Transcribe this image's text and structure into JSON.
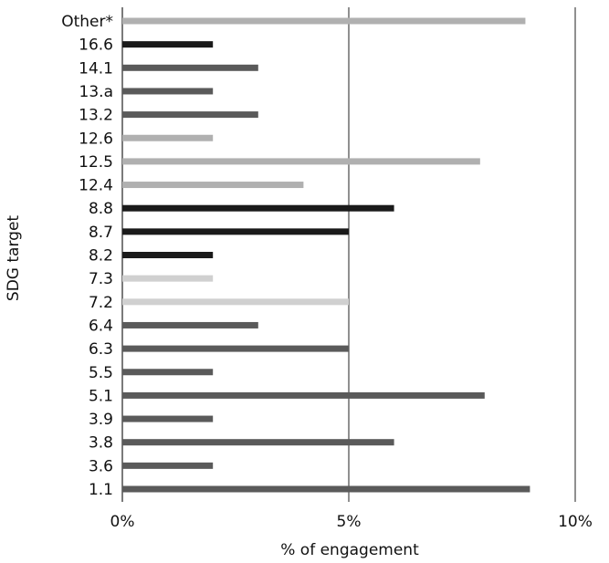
{
  "chart_data": {
    "type": "bar",
    "orientation": "horizontal",
    "title": "",
    "xlabel": "% of engagement",
    "ylabel": "SDG target",
    "xlim": [
      0,
      10
    ],
    "x_ticks": [
      "0%",
      "5%",
      "10%"
    ],
    "grid": "vertical lines at 5% and 10%",
    "categories": [
      "Other*",
      "16.6",
      "14.1",
      "13.a",
      "13.2",
      "12.6",
      "12.5",
      "12.4",
      "8.8",
      "8.7",
      "8.2",
      "7.3",
      "7.2",
      "6.4",
      "6.3",
      "5.5",
      "5.1",
      "3.9",
      "3.8",
      "3.6",
      "1.1"
    ],
    "values": [
      8.9,
      2.0,
      3.0,
      2.0,
      3.0,
      2.0,
      7.9,
      4.0,
      6.0,
      5.0,
      2.0,
      2.0,
      5.0,
      3.0,
      5.0,
      2.0,
      8.0,
      2.0,
      6.0,
      2.0,
      9.0
    ],
    "bar_colors": [
      "#b0b0b0",
      "#1a1a1a",
      "#5a5a5a",
      "#5a5a5a",
      "#5a5a5a",
      "#b0b0b0",
      "#b0b0b0",
      "#b0b0b0",
      "#1a1a1a",
      "#1a1a1a",
      "#1a1a1a",
      "#d0d0d0",
      "#d0d0d0",
      "#5a5a5a",
      "#5a5a5a",
      "#5a5a5a",
      "#5a5a5a",
      "#5a5a5a",
      "#5a5a5a",
      "#5a5a5a",
      "#5a5a5a"
    ]
  }
}
